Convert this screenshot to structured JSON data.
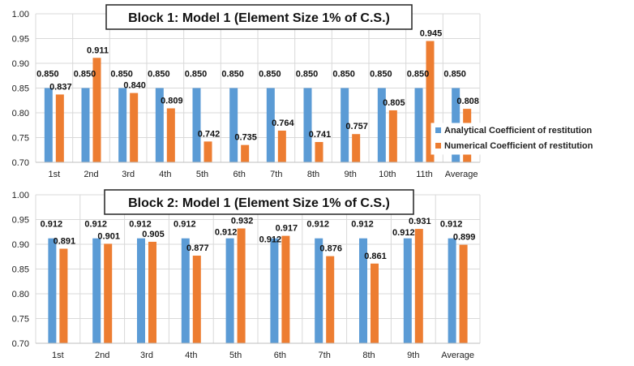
{
  "legend": {
    "analytical_label": "Analytical Coefficient of restitution",
    "numerical_label": "Numerical Coefficient of restitution"
  },
  "colors": {
    "analytical": "#5B9BD5",
    "numerical": "#ED7D31",
    "grid": "#D9D9D9",
    "text": "#222222"
  },
  "chart_data": [
    {
      "type": "bar",
      "title": "Block 1: Model 1 (Element Size 1% of C.S.)",
      "categories": [
        "1st",
        "2nd",
        "3rd",
        "4th",
        "5th",
        "6th",
        "7th",
        "8th",
        "9th",
        "10th",
        "11th",
        "Average"
      ],
      "ylim": [
        0.7,
        1.0
      ],
      "yticks": [
        "0.70",
        "0.75",
        "0.80",
        "0.85",
        "0.90",
        "0.95",
        "1.00"
      ],
      "grid": true,
      "legend_position": "right",
      "series": [
        {
          "name": "Analytical Coefficient of restitution",
          "values": [
            0.85,
            0.85,
            0.85,
            0.85,
            0.85,
            0.85,
            0.85,
            0.85,
            0.85,
            0.85,
            0.85,
            0.85
          ],
          "labels": [
            "0.850",
            "0.850",
            "0.850",
            "0.850",
            "0.850",
            "0.850",
            "0.850",
            "0.850",
            "0.850",
            "0.850",
            "0.850",
            "0.850"
          ]
        },
        {
          "name": "Numerical Coefficient of restitution",
          "values": [
            0.837,
            0.911,
            0.84,
            0.809,
            0.742,
            0.735,
            0.764,
            0.741,
            0.757,
            0.805,
            0.945,
            0.808
          ],
          "labels": [
            "0.837",
            "0.911",
            "0.840",
            "0.809",
            "0.742",
            "0.735",
            "0.764",
            "0.741",
            "0.757",
            "0.805",
            "0.945",
            "0.808"
          ]
        }
      ]
    },
    {
      "type": "bar",
      "title": "Block 2: Model 1 (Element Size 1% of C.S.)",
      "categories": [
        "1st",
        "2nd",
        "3rd",
        "4th",
        "5th",
        "6th",
        "7th",
        "8th",
        "9th",
        "Average"
      ],
      "ylim": [
        0.7,
        1.0
      ],
      "yticks": [
        "0.70",
        "0.75",
        "0.80",
        "0.85",
        "0.90",
        "0.95",
        "1.00"
      ],
      "grid": true,
      "series": [
        {
          "name": "Analytical Coefficient of restitution",
          "values": [
            0.912,
            0.912,
            0.912,
            0.912,
            0.912,
            0.912,
            0.912,
            0.912,
            0.912,
            0.912
          ],
          "labels": [
            "0.912",
            "0.912",
            "0.912",
            "0.912",
            "0.912",
            "0.912",
            "0.912",
            "0.912",
            "0.912",
            "0.912"
          ]
        },
        {
          "name": "Numerical Coefficient of restitution",
          "values": [
            0.891,
            0.901,
            0.905,
            0.877,
            0.932,
            0.917,
            0.876,
            0.861,
            0.931,
            0.899
          ],
          "labels": [
            "0.891",
            "0.901",
            "0.905",
            "0.877",
            "0.932",
            "0.917",
            "0.876",
            "0.861",
            "0.931",
            "0.899"
          ]
        }
      ]
    }
  ]
}
